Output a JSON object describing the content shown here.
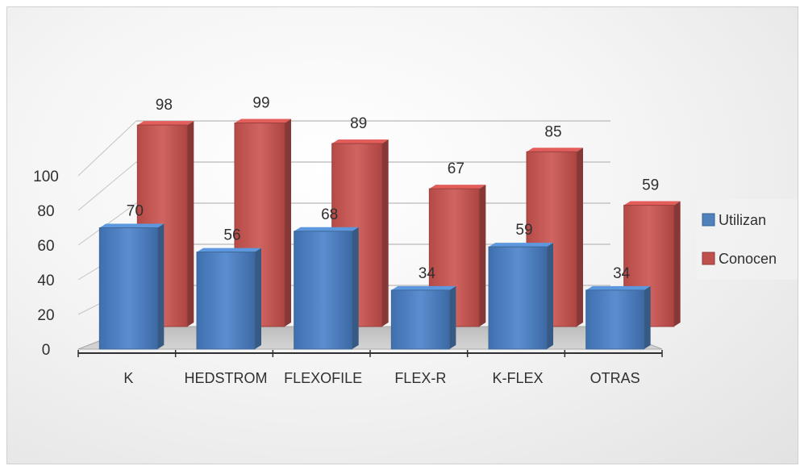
{
  "chart_data": {
    "type": "bar",
    "categories": [
      "K",
      "HEDSTROM",
      "FLEXOFILE",
      "FLEX-R",
      "K-FLEX",
      "OTRAS"
    ],
    "series": [
      {
        "name": "Utilizan",
        "values": [
          70,
          56,
          68,
          34,
          59,
          34
        ]
      },
      {
        "name": "Conocen",
        "values": [
          98,
          99,
          89,
          67,
          85,
          59
        ]
      }
    ],
    "yticks": [
      "0",
      "20",
      "40",
      "60",
      "80",
      "100"
    ],
    "ylim": [
      0,
      100
    ],
    "grid": true,
    "three_d": true,
    "legend_position": "right",
    "colors": {
      "Utilizan": "#4f81bd",
      "Conocen": "#c0504d"
    }
  }
}
